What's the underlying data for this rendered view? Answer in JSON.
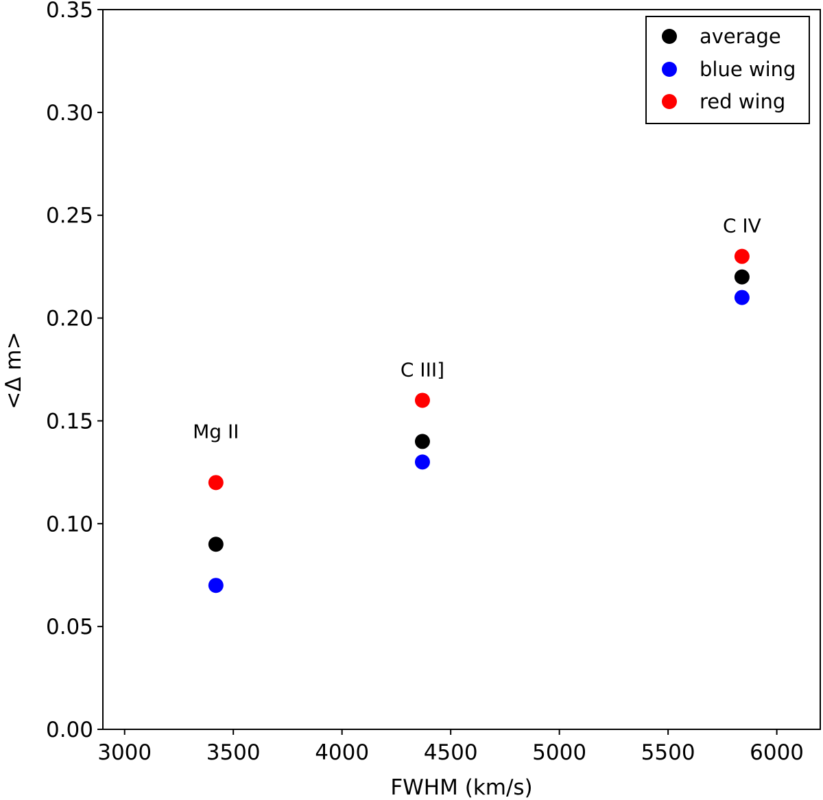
{
  "chart_data": {
    "type": "scatter",
    "title": "",
    "xlabel": "FWHM (km/s)",
    "ylabel": "<Δ m>",
    "xlim": [
      2900,
      6200
    ],
    "ylim": [
      0.0,
      0.35
    ],
    "xticks": [
      3000,
      3500,
      4000,
      4500,
      5000,
      5500,
      6000
    ],
    "yticks": [
      0.0,
      0.05,
      0.1,
      0.15,
      0.2,
      0.25,
      0.3,
      0.35
    ],
    "ytick_labels": [
      "0.00",
      "0.05",
      "0.10",
      "0.15",
      "0.20",
      "0.25",
      "0.30",
      "0.35"
    ],
    "xtick_labels": [
      "3000",
      "3500",
      "4000",
      "4500",
      "5000",
      "5500",
      "6000"
    ],
    "grid": false,
    "legend_position": "top-right",
    "series": [
      {
        "name": "average",
        "color": "#000000",
        "points": [
          {
            "x": 3420,
            "y": 0.09
          },
          {
            "x": 4370,
            "y": 0.14
          },
          {
            "x": 5840,
            "y": 0.22
          }
        ]
      },
      {
        "name": "blue wing",
        "color": "#0000ff",
        "points": [
          {
            "x": 3420,
            "y": 0.07
          },
          {
            "x": 4370,
            "y": 0.13
          },
          {
            "x": 5840,
            "y": 0.21
          }
        ]
      },
      {
        "name": "red wing",
        "color": "#ff0000",
        "points": [
          {
            "x": 3420,
            "y": 0.12
          },
          {
            "x": 4370,
            "y": 0.16
          },
          {
            "x": 5840,
            "y": 0.23
          }
        ]
      }
    ],
    "annotations": [
      {
        "text": "Mg II",
        "x": 3420,
        "y": 0.145
      },
      {
        "text": "C III]",
        "x": 4370,
        "y": 0.175
      },
      {
        "text": "C IV",
        "x": 5840,
        "y": 0.245
      }
    ]
  }
}
